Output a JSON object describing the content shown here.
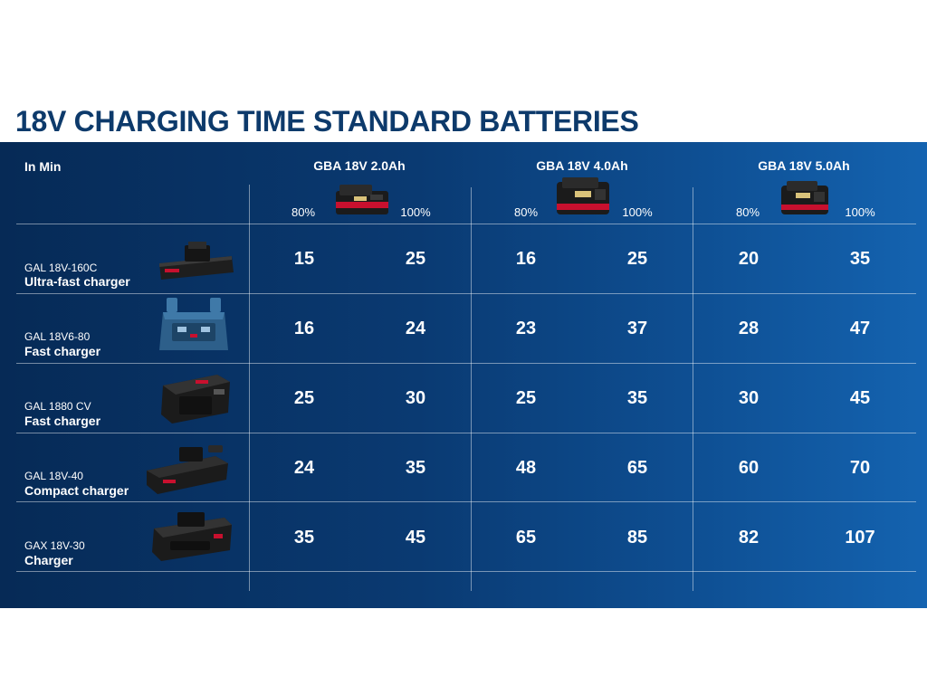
{
  "title": "18V CHARGING TIME STANDARD BATTERIES",
  "table": {
    "unit_label": "In Min",
    "batteries": [
      {
        "name": "GBA 18V 2.0Ah",
        "icon": "battery-2ah-icon",
        "pct_low": "80%",
        "pct_high": "100%"
      },
      {
        "name": "GBA 18V 4.0Ah",
        "icon": "battery-4ah-icon",
        "pct_low": "80%",
        "pct_high": "100%"
      },
      {
        "name": "GBA 18V 5.0Ah",
        "icon": "battery-5ah-icon",
        "pct_low": "80%",
        "pct_high": "100%"
      }
    ],
    "rows": [
      {
        "model": "GAL 18V-160C",
        "type": "Ultra-fast charger",
        "icon": "ultra-fast-charger-icon",
        "values": [
          "15",
          "25",
          "16",
          "25",
          "20",
          "35"
        ]
      },
      {
        "model": "GAL 18V6-80",
        "type": "Fast charger",
        "icon": "multi-bay-charger-icon",
        "values": [
          "16",
          "24",
          "23",
          "37",
          "28",
          "47"
        ]
      },
      {
        "model": "GAL 1880 CV",
        "type": "Fast charger",
        "icon": "fast-charger-icon",
        "values": [
          "25",
          "30",
          "25",
          "35",
          "30",
          "45"
        ]
      },
      {
        "model": "GAL 18V-40",
        "type": "Compact charger",
        "icon": "compact-charger-icon",
        "values": [
          "24",
          "35",
          "48",
          "65",
          "60",
          "70"
        ]
      },
      {
        "model": "GAX 18V-30",
        "type": "Charger",
        "icon": "charger-icon",
        "values": [
          "35",
          "45",
          "65",
          "85",
          "82",
          "107"
        ]
      }
    ]
  },
  "colors": {
    "title": "#0d3a6b",
    "panel_dark": "#062a56",
    "panel_light": "#1463b0",
    "text": "#ffffff",
    "battery_red": "#c8102e"
  }
}
